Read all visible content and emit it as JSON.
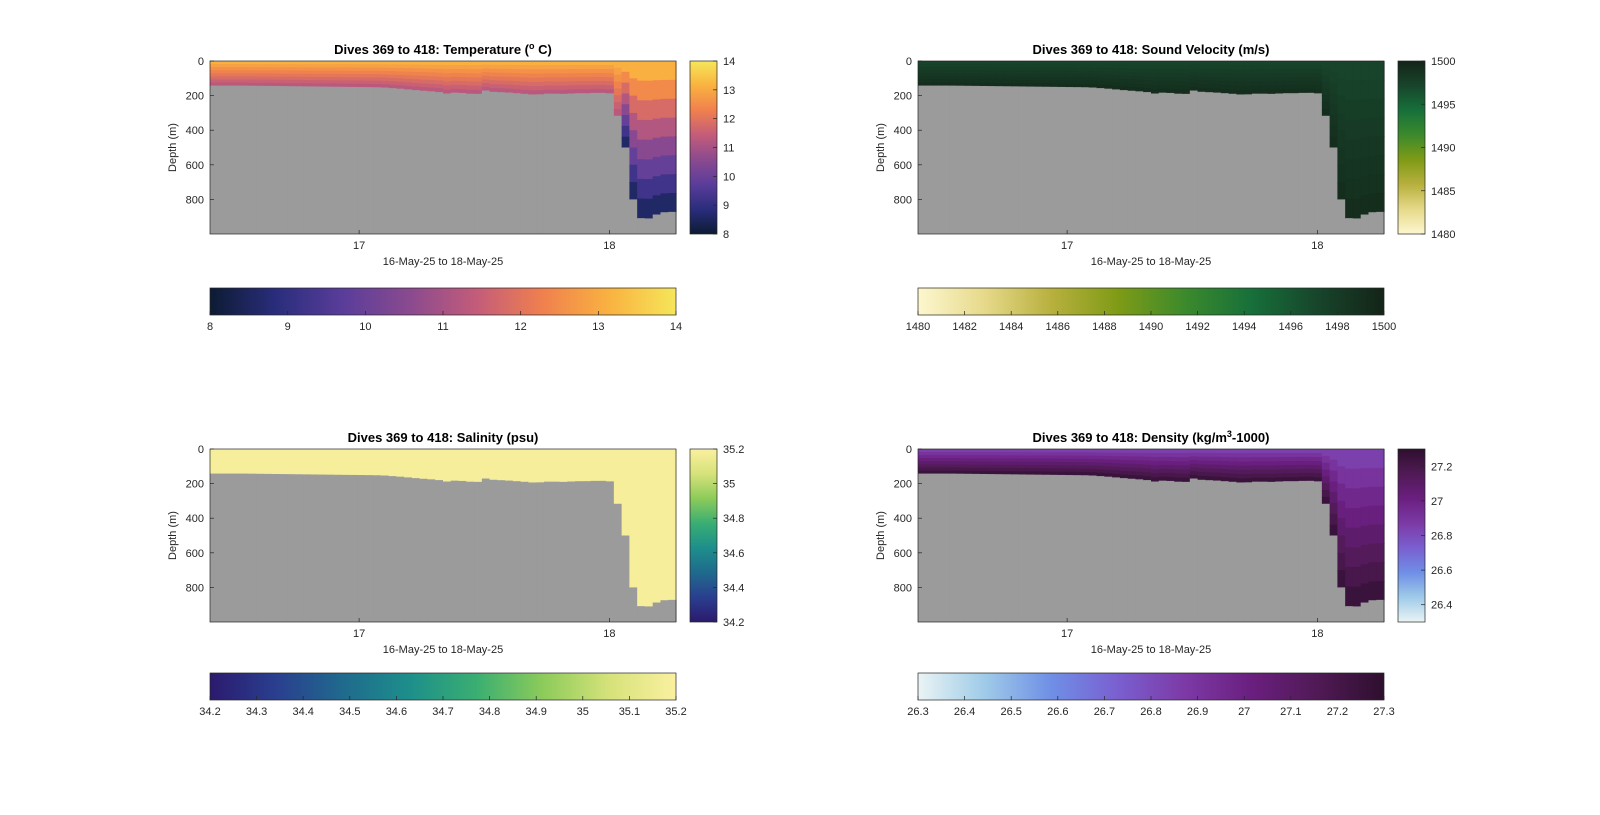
{
  "chart_data": [
    {
      "type": "heatmap",
      "title": "Dives 369 to 418: Temperature (",
      "title_sup": "o",
      "title_end": " C)",
      "xlabel": "16-May-25 to 18-May-25",
      "ylabel": "Depth (m)",
      "x_ticks": [
        "17",
        "18"
      ],
      "y_ticks": [
        "0",
        "200",
        "400",
        "600",
        "800"
      ],
      "ylim": [
        0,
        1000
      ],
      "ydir": "reverse",
      "colormap": [
        "#0d1b33",
        "#2a2d7c",
        "#5a3d9a",
        "#8a4a8f",
        "#c35c7a",
        "#f0804e",
        "#f9b240",
        "#f6e65a"
      ],
      "fill_direction": "warm-top",
      "colorbar_right": {
        "ticks": [
          "8",
          "9",
          "10",
          "11",
          "12",
          "13",
          "14"
        ],
        "range": [
          8,
          14
        ]
      },
      "colorbar_bottom": {
        "ticks": [
          "8",
          "9",
          "10",
          "11",
          "12",
          "13",
          "14"
        ],
        "range": [
          8,
          14
        ]
      }
    },
    {
      "type": "heatmap",
      "title": "Dives 369 to 418: Sound Velocity (m/s)",
      "title_sup": "",
      "title_end": "",
      "xlabel": "16-May-25 to 18-May-25",
      "ylabel": "Depth (m)",
      "x_ticks": [
        "17",
        "18"
      ],
      "y_ticks": [
        "0",
        "200",
        "400",
        "600",
        "800"
      ],
      "ylim": [
        0,
        1000
      ],
      "ydir": "reverse",
      "colormap": [
        "#fdf7cf",
        "#e6d98a",
        "#b8b03e",
        "#7f9b16",
        "#3c8a2c",
        "#17703a",
        "#17452b",
        "#142418"
      ],
      "fill_direction": "uniform-dark",
      "colorbar_right": {
        "ticks": [
          "1480",
          "1485",
          "1490",
          "1495",
          "1500"
        ],
        "range": [
          1480,
          1500
        ]
      },
      "colorbar_bottom": {
        "ticks": [
          "1480",
          "1482",
          "1484",
          "1486",
          "1488",
          "1490",
          "1492",
          "1494",
          "1496",
          "1498",
          "1500"
        ],
        "range": [
          1480,
          1500
        ]
      }
    },
    {
      "type": "heatmap",
      "title": "Dives 369 to 418: Salinity (psu)",
      "title_sup": "",
      "title_end": "",
      "xlabel": "16-May-25 to 18-May-25",
      "ylabel": "Depth (m)",
      "x_ticks": [
        "17",
        "18"
      ],
      "y_ticks": [
        "0",
        "200",
        "400",
        "600",
        "800"
      ],
      "ylim": [
        0,
        1000
      ],
      "ydir": "reverse",
      "colormap": [
        "#2b1a6e",
        "#2a3f8f",
        "#1f6a8d",
        "#1d8f8b",
        "#3aae72",
        "#8ccb5a",
        "#d6e27a",
        "#fbf0a0"
      ],
      "fill_direction": "uniform-light",
      "colorbar_right": {
        "ticks": [
          "34.2",
          "34.4",
          "34.6",
          "34.8",
          "35",
          "35.2"
        ],
        "range": [
          34.2,
          35.2
        ]
      },
      "colorbar_bottom": {
        "ticks": [
          "34.2",
          "34.3",
          "34.4",
          "34.5",
          "34.6",
          "34.7",
          "34.8",
          "34.9",
          "35",
          "35.1",
          "35.2"
        ],
        "range": [
          34.2,
          35.2
        ]
      }
    },
    {
      "type": "heatmap",
      "title": "Dives 369 to 418: Density (kg/m",
      "title_sup": "3",
      "title_end": "-1000)",
      "xlabel": "16-May-25 to 18-May-25",
      "ylabel": "Depth (m)",
      "x_ticks": [
        "17",
        "18"
      ],
      "y_ticks": [
        "0",
        "200",
        "400",
        "600",
        "800"
      ],
      "ylim": [
        0,
        1000
      ],
      "ydir": "reverse",
      "colormap": [
        "#eaf4f4",
        "#9fcbe8",
        "#6f8fe6",
        "#7a5fd0",
        "#7c3aa6",
        "#6a1f7f",
        "#501a55",
        "#2e0f2e"
      ],
      "fill_direction": "dense-bottom",
      "colorbar_right": {
        "ticks": [
          "26.4",
          "26.6",
          "26.8",
          "27",
          "27.2"
        ],
        "range": [
          26.3,
          27.3
        ]
      },
      "colorbar_bottom": {
        "ticks": [
          "26.3",
          "26.4",
          "26.5",
          "26.6",
          "26.7",
          "26.8",
          "26.9",
          "27",
          "27.1",
          "27.2",
          "27.3"
        ],
        "range": [
          26.3,
          27.3
        ]
      }
    }
  ]
}
